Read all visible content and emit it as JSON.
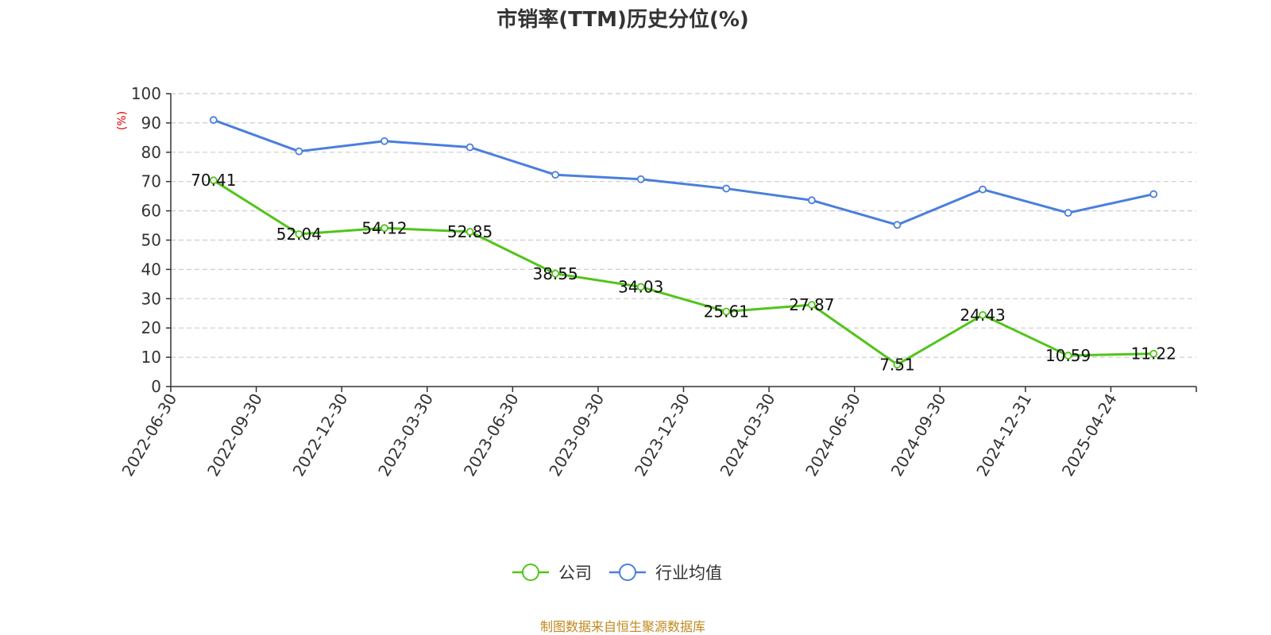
{
  "chart_data": {
    "type": "line",
    "title": "市销率(TTM)历史分位(%)",
    "ylabel": "(%)",
    "ylim": [
      0,
      100
    ],
    "yticks": [
      0,
      10,
      20,
      30,
      40,
      50,
      60,
      70,
      80,
      90,
      100
    ],
    "grid": true,
    "legend_position": "bottom-center",
    "categories": [
      "2022-06-30",
      "2022-09-30",
      "2022-12-30",
      "2023-03-30",
      "2023-06-30",
      "2023-09-30",
      "2023-12-30",
      "2024-03-30",
      "2024-06-30",
      "2024-09-30",
      "2024-12-31",
      "2025-04-24"
    ],
    "series": [
      {
        "name": "公司",
        "color": "#52c41a",
        "show_labels": true,
        "values": [
          70.41,
          52.04,
          54.12,
          52.85,
          38.55,
          34.03,
          25.61,
          27.87,
          7.51,
          24.43,
          10.59,
          11.22
        ]
      },
      {
        "name": "行业均值",
        "color": "#4a7fdc",
        "show_labels": false,
        "values": [
          91.0,
          80.3,
          83.8,
          81.7,
          72.3,
          70.8,
          67.6,
          63.6,
          55.2,
          67.3,
          59.3,
          65.7
        ]
      }
    ],
    "source": "制图数据来自恒生聚源数据库",
    "ylabel_color": "#e00000",
    "source_color": "#c08a1e"
  }
}
